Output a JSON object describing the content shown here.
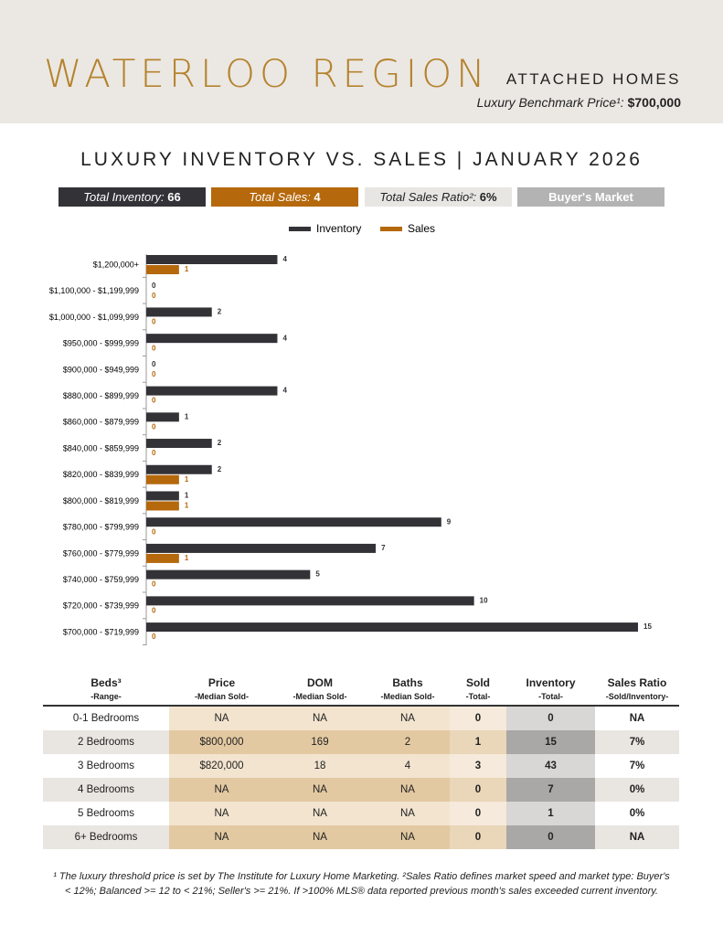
{
  "header": {
    "region": "WATERLOO REGION",
    "property_type": "ATTACHED HOMES",
    "benchmark_label": "Luxury Benchmark Price¹:",
    "benchmark_value": "$700,000"
  },
  "summary": [
    {
      "label": "Total Inventory:",
      "value": "66"
    },
    {
      "label": "Total Sales:",
      "value": "4"
    },
    {
      "label": "Total Sales Ratio²:",
      "value": "6%"
    },
    {
      "label": "Buyer's Market"
    }
  ],
  "chart_data": {
    "type": "bar",
    "orientation": "horizontal",
    "title": "LUXURY INVENTORY VS. SALES | JANUARY 2026",
    "categories": [
      "$1,200,000+",
      "$1,100,000 - $1,199,999",
      "$1,000,000 - $1,099,999",
      "$950,000 - $999,999",
      "$900,000 - $949,999",
      "$880,000 - $899,999",
      "$860,000 - $879,999",
      "$840,000 - $859,999",
      "$820,000 - $839,999",
      "$800,000 - $819,999",
      "$780,000 - $799,999",
      "$760,000 - $779,999",
      "$740,000 - $759,999",
      "$720,000 - $739,999",
      "$700,000 - $719,999"
    ],
    "series": [
      {
        "name": "Inventory",
        "color": "#333237",
        "values": [
          4,
          0,
          2,
          4,
          0,
          4,
          1,
          2,
          2,
          1,
          9,
          7,
          5,
          10,
          15
        ]
      },
      {
        "name": "Sales",
        "color": "#b5690c",
        "values": [
          1,
          0,
          0,
          0,
          0,
          0,
          0,
          0,
          1,
          1,
          0,
          1,
          0,
          0,
          0
        ]
      }
    ],
    "xlim": [
      0,
      15
    ],
    "legend": "top"
  },
  "table": {
    "headers": [
      {
        "title": "Beds³",
        "sub": "-Range-"
      },
      {
        "title": "Price",
        "sub": "-Median Sold-"
      },
      {
        "title": "DOM",
        "sub": "-Median Sold-"
      },
      {
        "title": "Baths",
        "sub": "-Median Sold-"
      },
      {
        "title": "Sold",
        "sub": "-Total-"
      },
      {
        "title": "Inventory",
        "sub": "-Total-"
      },
      {
        "title": "Sales Ratio",
        "sub": "-Sold/Inventory-"
      }
    ],
    "rows": [
      [
        "0-1 Bedrooms",
        "NA",
        "NA",
        "NA",
        "0",
        "0",
        "NA"
      ],
      [
        "2 Bedrooms",
        "$800,000",
        "169",
        "2",
        "1",
        "15",
        "7%"
      ],
      [
        "3 Bedrooms",
        "$820,000",
        "18",
        "4",
        "3",
        "43",
        "7%"
      ],
      [
        "4 Bedrooms",
        "NA",
        "NA",
        "NA",
        "0",
        "7",
        "0%"
      ],
      [
        "5 Bedrooms",
        "NA",
        "NA",
        "NA",
        "0",
        "1",
        "0%"
      ],
      [
        "6+ Bedrooms",
        "NA",
        "NA",
        "NA",
        "0",
        "0",
        "NA"
      ]
    ]
  },
  "footnote": "¹ The luxury threshold price is set by The Institute for Luxury Home Marketing. ²Sales Ratio defines market speed and market type: Buyer's < 12%; Balanced >= 12 to < 21%; Seller's >= 21%. If >100% MLS® data reported previous month's sales exceeded current inventory."
}
